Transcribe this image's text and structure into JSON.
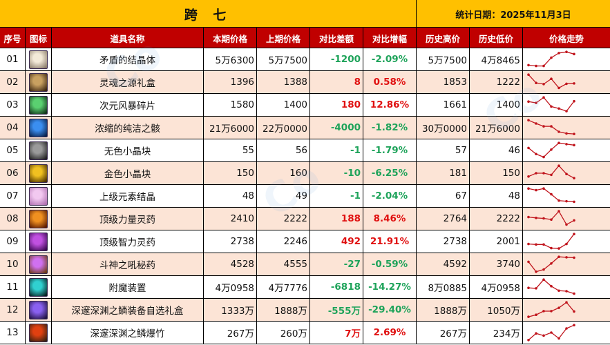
{
  "title": {
    "server": "跨 七",
    "date_label": "统计日期：2025年11月3日"
  },
  "headers": [
    "序号",
    "图标",
    "道具名称",
    "本期价格",
    "上期价格",
    "对比差额",
    "对比增幅",
    "历史高价",
    "历史低价",
    "价格走势"
  ],
  "colors": {
    "title_bg": "#ffc000",
    "header_bg": "#c00000",
    "alt_row_bg": "#fce4d6",
    "increase": "#e01010",
    "decrease": "#1ea35a",
    "sparkline": "#c0141c"
  },
  "rows": [
    {
      "no": "01",
      "icon": "crystal-icon",
      "icon_colors": [
        "#f3ead8",
        "#8a7c6a"
      ],
      "name": "矛盾的结晶体",
      "current": "5万6300",
      "previous": "5万7500",
      "diff": "-1200",
      "pct": "-2.09%",
      "trend": "down",
      "high": "5万7500",
      "low": "4万8465",
      "spark": [
        0.85,
        0.9,
        0.9,
        0.4,
        0.12,
        0.05,
        0.18
      ]
    },
    {
      "no": "02",
      "icon": "gift-box-icon",
      "icon_colors": [
        "#c8a060",
        "#3a2410"
      ],
      "name": "灵魂之源礼盒",
      "current": "1396",
      "previous": "1388",
      "diff": "8",
      "pct": "0.58%",
      "trend": "up",
      "high": "1853",
      "low": "1222",
      "spark": [
        0.05,
        0.55,
        0.62,
        0.3,
        0.85,
        0.6,
        0.58
      ]
    },
    {
      "no": "03",
      "icon": "shard-icon",
      "icon_colors": [
        "#5ad070",
        "#103018"
      ],
      "name": "次元风暴碎片",
      "current": "1580",
      "previous": "1400",
      "diff": "180",
      "pct": "12.86%",
      "trend": "up",
      "high": "1661",
      "low": "1400",
      "spark": [
        0.3,
        0.38,
        0.05,
        0.6,
        0.72,
        0.88,
        0.28
      ]
    },
    {
      "no": "04",
      "icon": "essence-icon",
      "icon_colors": [
        "#3a8ef0",
        "#08204a"
      ],
      "name": "浓缩的纯洁之骸",
      "current": "21万6000",
      "previous": "22万0000",
      "diff": "-4000",
      "pct": "-1.82%",
      "trend": "down",
      "high": "30万0000",
      "low": "21万6000",
      "spark": [
        0.05,
        0.25,
        0.42,
        0.42,
        0.75,
        0.85,
        0.88
      ]
    },
    {
      "no": "05",
      "icon": "colorless-cube-icon",
      "icon_colors": [
        "#9a9a9a",
        "#202020"
      ],
      "name": "无色小晶块",
      "current": "55",
      "previous": "56",
      "diff": "-1",
      "pct": "-1.79%",
      "trend": "down",
      "high": "57",
      "low": "46",
      "spark": [
        0.35,
        0.72,
        0.9,
        0.45,
        0.05,
        0.12,
        0.18
      ]
    },
    {
      "no": "06",
      "icon": "gold-cube-icon",
      "icon_colors": [
        "#f0c020",
        "#4a3000"
      ],
      "name": "金色小晶块",
      "current": "150",
      "previous": "160",
      "diff": "-10",
      "pct": "-6.25%",
      "trend": "down",
      "high": "181",
      "low": "150",
      "spark": [
        0.7,
        0.5,
        0.5,
        0.6,
        0.05,
        0.55,
        0.8
      ]
    },
    {
      "no": "07",
      "icon": "element-crystal-icon",
      "icon_colors": [
        "#f2c8f0",
        "#b070b0"
      ],
      "name": "上级元素结晶",
      "current": "48",
      "previous": "49",
      "diff": "-1",
      "pct": "-2.04%",
      "trend": "down",
      "high": "67",
      "low": "48",
      "spark": [
        0.05,
        0.15,
        0.05,
        0.4,
        0.78,
        0.82,
        0.85
      ]
    },
    {
      "no": "08",
      "icon": "strength-potion-icon",
      "icon_colors": [
        "#f09020",
        "#5a1800"
      ],
      "name": "顶级力量灵药",
      "current": "2410",
      "previous": "2222",
      "diff": "188",
      "pct": "8.46%",
      "trend": "up",
      "high": "2764",
      "low": "2222",
      "spark": [
        0.4,
        0.45,
        0.48,
        0.55,
        0.05,
        0.85,
        0.6
      ]
    },
    {
      "no": "09",
      "icon": "intelligence-potion-icon",
      "icon_colors": [
        "#c050e0",
        "#3a0850"
      ],
      "name": "顶级智力灵药",
      "current": "2738",
      "previous": "2246",
      "diff": "492",
      "pct": "21.91%",
      "trend": "up",
      "high": "2738",
      "low": "2001",
      "spark": [
        0.65,
        0.68,
        0.68,
        0.9,
        0.92,
        0.65,
        0.05
      ]
    },
    {
      "no": "10",
      "icon": "secret-potion-icon",
      "icon_colors": [
        "#d070f0",
        "#6a3a10"
      ],
      "name": "斗神之吼秘药",
      "current": "4528",
      "previous": "4555",
      "diff": "-27",
      "pct": "-0.59%",
      "trend": "down",
      "high": "4592",
      "low": "3740",
      "spark": [
        0.35,
        0.95,
        0.82,
        0.45,
        0.05,
        0.08,
        0.1
      ]
    },
    {
      "no": "11",
      "icon": "enchant-device-icon",
      "icon_colors": [
        "#30d0d0",
        "#062020"
      ],
      "name": "附魔装置",
      "current": "4万0958",
      "previous": "4万7776",
      "diff": "-6818",
      "pct": "-14.27%",
      "trend": "down",
      "high": "8万0885",
      "low": "4万0958",
      "spark": [
        0.55,
        0.58,
        0.05,
        0.45,
        0.72,
        0.75,
        0.9
      ]
    },
    {
      "no": "12",
      "icon": "abyss-gift-box-icon",
      "icon_colors": [
        "#8a60f0",
        "#201040"
      ],
      "name": "深邃深渊之鳞装备自选礼盒",
      "current": "1333万",
      "previous": "1888万",
      "diff": "-555万",
      "pct": "-29.40%",
      "trend": "down",
      "high": "1888万",
      "low": "1050万",
      "spark": [
        0.92,
        0.8,
        0.58,
        0.58,
        0.38,
        0.05,
        0.6
      ]
    },
    {
      "no": "13",
      "icon": "abyss-firecracker-icon",
      "icon_colors": [
        "#e04010",
        "#302010"
      ],
      "name": "深邃深渊之鳞爆竹",
      "current": "267万",
      "previous": "260万",
      "diff": "7万",
      "pct": "2.69%",
      "trend": "up",
      "high": "267万",
      "low": "234万",
      "spark": [
        0.95,
        0.55,
        0.68,
        0.5,
        0.85,
        0.25,
        0.05
      ]
    }
  ]
}
